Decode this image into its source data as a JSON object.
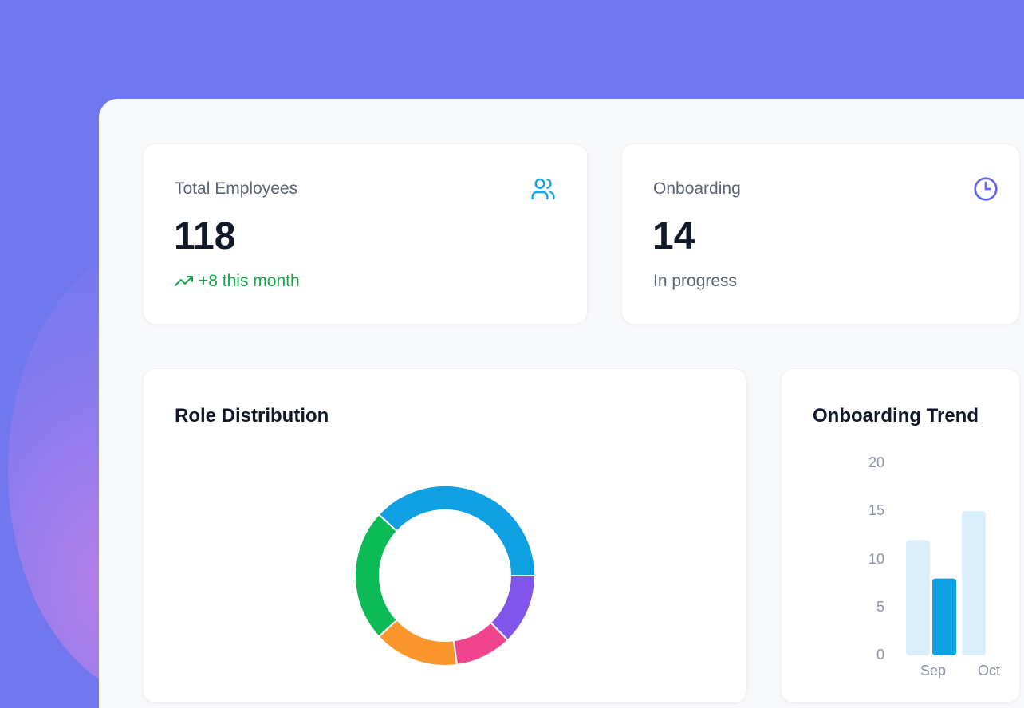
{
  "stats": [
    {
      "label": "Total Employees",
      "value": "118",
      "sub": "+8 this month",
      "icon": "users-icon",
      "trend": "up"
    },
    {
      "label": "Onboarding",
      "value": "14",
      "sub": "In progress",
      "icon": "clock-icon"
    }
  ],
  "colors": {
    "accent": "#0ea5e9",
    "positive": "#16a34a",
    "indigo": "#6366f1"
  },
  "chart_data": [
    {
      "type": "pie",
      "title": "Role Distribution",
      "donut": true,
      "values": [
        45,
        28,
        18,
        12,
        15
      ],
      "colors": [
        "#0ea0e2",
        "#0cbb55",
        "#fb962d",
        "#f0448f",
        "#8154ea"
      ]
    },
    {
      "type": "bar",
      "title": "Onboarding Trend",
      "categories": [
        "Sep",
        "Oct"
      ],
      "series": [
        {
          "values": [
            12,
            15
          ],
          "color": "#dbeefc"
        },
        {
          "values": [
            8,
            null
          ],
          "color": "#0ea0e2"
        }
      ],
      "yticks": [
        "0",
        "5",
        "10",
        "15",
        "20"
      ],
      "ylim": [
        0,
        20
      ]
    }
  ]
}
